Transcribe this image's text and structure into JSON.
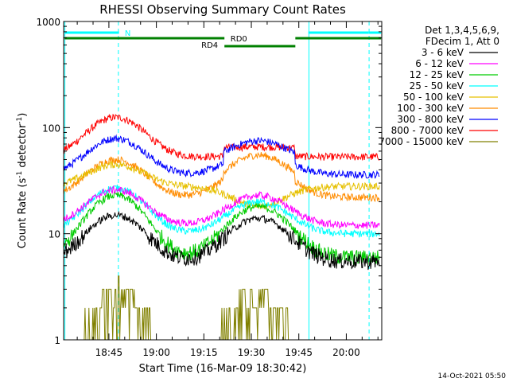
{
  "chart_data": {
    "type": "line",
    "title": "RHESSI Observing Summary Count Rates",
    "xlabel": "Start Time (16-Mar-09 18:30:42)",
    "ylabel_main": "Count Rate (s",
    "ylabel_sup1": "-1",
    "ylabel_mid": " detector",
    "ylabel_sup2": "-1",
    "ylabel_end": ")",
    "yscale": "log",
    "ylim": [
      1,
      1000
    ],
    "xlim_min": [
      0,
      100.5
    ],
    "x_ticks": [
      {
        "min": 14.3,
        "label": "18:45"
      },
      {
        "min": 29.3,
        "label": "19:00"
      },
      {
        "min": 44.3,
        "label": "19:15"
      },
      {
        "min": 59.3,
        "label": "19:30"
      },
      {
        "min": 74.3,
        "label": "19:45"
      },
      {
        "min": 89.3,
        "label": "20:00"
      }
    ],
    "y_ticks": [
      {
        "value": 1,
        "label": "1"
      },
      {
        "value": 10,
        "label": "10"
      },
      {
        "value": 100,
        "label": "100"
      },
      {
        "value": 1000,
        "label": "1000"
      }
    ],
    "legend_header": [
      "Det 1,3,4,5,6,9,",
      "FDecim 1, Att 0"
    ],
    "legend_position": "right",
    "series": [
      {
        "name": "3 - 6 keV",
        "color": "#000000",
        "base": 5.5,
        "p1": 15,
        "p2": 14,
        "jump": 1.0
      },
      {
        "name": "6 - 12 keV",
        "color": "#ff00ff",
        "base": 12,
        "p1": 26,
        "p2": 23,
        "jump": 1.0
      },
      {
        "name": "12 - 25 keV",
        "color": "#00cc00",
        "base": 6,
        "p1": 23,
        "p2": 18,
        "jump": 1.0
      },
      {
        "name": "25 - 50 keV",
        "color": "#00ffff",
        "base": 10,
        "p1": 27,
        "p2": 20,
        "jump": 1.0
      },
      {
        "name": "50 - 100 keV",
        "color": "#e6c000",
        "base": 28,
        "p1": 45,
        "p2": 18,
        "jump": 1.0
      },
      {
        "name": "100 - 300 keV",
        "color": "#ff8c00",
        "base": 22,
        "p1": 50,
        "p2": 46,
        "jump": 1.2
      },
      {
        "name": "300 - 800 keV",
        "color": "#0000ff",
        "base": 36,
        "p1": 79,
        "p2": 58,
        "jump": 1.3
      },
      {
        "name": "800 - 7000 keV",
        "color": "#ff0000",
        "base": 53,
        "p1": 125,
        "p2": 55,
        "jump": 1.2
      },
      {
        "name": "7000 - 15000 keV",
        "color": "#808000",
        "base": 0,
        "p1": 3,
        "p2": 3,
        "jump": 1.0
      }
    ],
    "state_bars": [
      {
        "label": "N",
        "color": "#00ffff"
      },
      {
        "label": "RD0",
        "color": "#008000"
      },
      {
        "label": "RD4",
        "color": "#008000"
      }
    ]
  },
  "footer": {
    "timestamp": "14-Oct-2021 05:50"
  }
}
